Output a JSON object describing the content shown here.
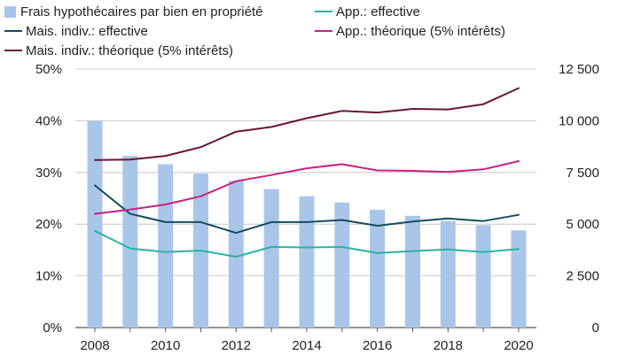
{
  "chart_data": {
    "type": "bar",
    "categories": [
      "2008",
      "2009",
      "2010",
      "2011",
      "2012",
      "2013",
      "2014",
      "2015",
      "2016",
      "2017",
      "2018",
      "2019",
      "2020"
    ],
    "x_tick_labels": [
      "2008",
      "2010",
      "2012",
      "2014",
      "2016",
      "2018",
      "2020"
    ],
    "left_axis": {
      "ylim": [
        0,
        50
      ],
      "tick_labels": [
        "0%",
        "10%",
        "20%",
        "30%",
        "40%",
        "50%"
      ],
      "tick_values": [
        0,
        10,
        20,
        30,
        40,
        50
      ]
    },
    "right_axis": {
      "ylim": [
        0,
        12500
      ],
      "tick_labels": [
        "0",
        "2 500",
        "5 000",
        "7 500",
        "10 000",
        "12 500"
      ],
      "tick_values": [
        0,
        2500,
        5000,
        7500,
        10000,
        12500
      ]
    },
    "grid": "horizontal",
    "legend_position": "top",
    "series": [
      {
        "name": "Frais hypothécaires par bien en propriété",
        "kind": "bar",
        "axis": "right",
        "color": "#a9c6ea",
        "values": [
          10000,
          8300,
          7900,
          7450,
          7100,
          6700,
          6350,
          6050,
          5700,
          5400,
          5150,
          4950,
          4700
        ]
      },
      {
        "name": "App.: effective",
        "kind": "line",
        "axis": "left",
        "color": "#2bb3a3",
        "values": [
          18.7,
          15.3,
          14.6,
          14.9,
          13.7,
          15.6,
          15.5,
          15.6,
          14.4,
          14.8,
          15.1,
          14.6,
          15.2
        ]
      },
      {
        "name": "Mais. indiv.: effective",
        "kind": "line",
        "axis": "left",
        "color": "#164b5e",
        "values": [
          27.5,
          22.0,
          20.4,
          20.4,
          18.3,
          20.4,
          20.4,
          20.8,
          19.7,
          20.5,
          21.1,
          20.6,
          21.8
        ]
      },
      {
        "name": "App.: théorique (5% intérêts)",
        "kind": "line",
        "axis": "left",
        "color": "#c8217e",
        "values": [
          22.0,
          22.8,
          23.8,
          25.4,
          28.3,
          29.5,
          30.8,
          31.6,
          30.4,
          30.3,
          30.1,
          30.6,
          32.2
        ]
      },
      {
        "name": "Mais. indiv.: théorique (5% intérêts)",
        "kind": "line",
        "axis": "left",
        "color": "#6a1438",
        "values": [
          32.4,
          32.5,
          33.2,
          34.9,
          37.9,
          38.8,
          40.5,
          41.9,
          41.6,
          42.3,
          42.2,
          43.2,
          46.3
        ]
      }
    ]
  }
}
